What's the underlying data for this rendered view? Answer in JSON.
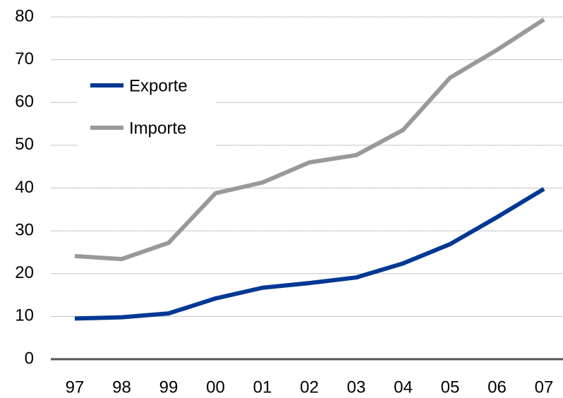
{
  "chart_data": {
    "type": "line",
    "categories": [
      "97",
      "98",
      "99",
      "00",
      "01",
      "02",
      "03",
      "04",
      "05",
      "06",
      "07"
    ],
    "series": [
      {
        "name": "Exporte",
        "color": "#003893",
        "values": [
          9.5,
          9.8,
          10.7,
          14.2,
          16.7,
          17.8,
          19.1,
          22.4,
          26.9,
          33.2,
          39.8
        ]
      },
      {
        "name": "Importe",
        "color": "#999999",
        "values": [
          24.1,
          23.4,
          27.2,
          38.8,
          41.3,
          46.0,
          47.7,
          53.6,
          65.8,
          72.3,
          79.4
        ]
      }
    ],
    "ylim": [
      0,
      80
    ],
    "yticks": [
      0,
      10,
      20,
      30,
      40,
      50,
      60,
      70,
      80
    ],
    "grid": true,
    "legend": "upper left"
  }
}
